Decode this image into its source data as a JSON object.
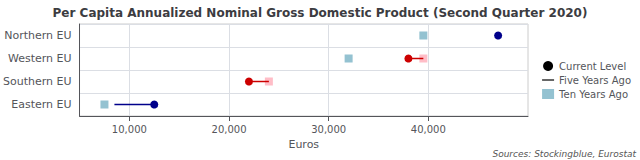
{
  "chart_data": {
    "type": "dumbbell",
    "title": "Per Capita Annualized Nominal Gross Domestic Product (Second Quarter 2020)",
    "xlabel": "Euros",
    "source": "Sources: Stockingblue, Eurostat",
    "orientation": "horizontal",
    "categories": [
      "Northern EU",
      "Western EU",
      "Southern EU",
      "Eastern EU"
    ],
    "series": [
      {
        "name": "Current Level",
        "type": "scatter",
        "marker": "circle",
        "color": "#000000",
        "colors": [
          "#00008B",
          "#CC0000",
          "#CC0000",
          "#00008B"
        ],
        "values": [
          47000,
          38000,
          22000,
          12500
        ]
      },
      {
        "name": "Five Years Ago",
        "type": "line",
        "line_style": "solid",
        "marker": "square",
        "color": "#000000",
        "colors": [
          null,
          "#FFB6C1",
          "#FFB6C1",
          null
        ],
        "values": [
          null,
          39500,
          24000,
          8500
        ]
      },
      {
        "name": "Ten Years Ago",
        "type": "scatter",
        "marker": "square",
        "color": "#88BBCC",
        "colors": [
          "#88BBCC",
          "#88BBCC",
          null,
          "#88BBCC"
        ],
        "values": [
          39500,
          32000,
          null,
          7500
        ]
      }
    ],
    "xlim": [
      5000,
      50000
    ],
    "xticks": [
      {
        "value": 10000,
        "label": "10,000"
      },
      {
        "value": 20000,
        "label": "20,000"
      },
      {
        "value": 30000,
        "label": "30,000"
      },
      {
        "value": 40000,
        "label": "40,000"
      }
    ],
    "grid": true,
    "legend": "right"
  }
}
